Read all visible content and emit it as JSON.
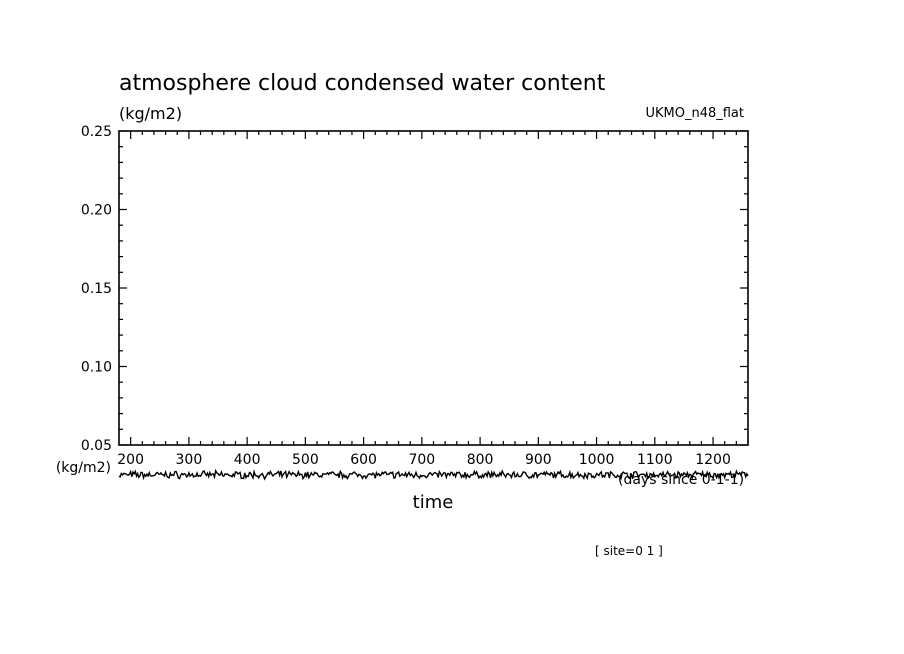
{
  "chart_data": {
    "type": "line",
    "title": "atmosphere cloud condensed water content",
    "ylabel": "(kg/m2)",
    "ylabel_lower": "(kg/m2)",
    "model_label": "UKMO_n48_flat",
    "xlabel": "time",
    "xunits": "(days since 0-1-1)",
    "site_label": "[ site=0 1 ]",
    "xlim": [
      180,
      1260
    ],
    "ylim": [
      0.05,
      0.25
    ],
    "xticks": [
      200,
      300,
      400,
      500,
      600,
      700,
      800,
      900,
      1000,
      1100,
      1200
    ],
    "xtick_labels": [
      "200",
      "300",
      "400",
      "500",
      "600",
      "700",
      "800",
      "900",
      "1000",
      "1100",
      "1200"
    ],
    "yticks": [
      0.05,
      0.1,
      0.15,
      0.2,
      0.25
    ],
    "ytick_labels": [
      "0.05",
      "0.10",
      "0.15",
      "0.20",
      "0.25"
    ],
    "grid": false,
    "series": [
      {
        "x": [
          180,
          1260
        ],
        "y": [
          0.031,
          0.031
        ],
        "noise_amplitude": 0.0015
      }
    ]
  }
}
